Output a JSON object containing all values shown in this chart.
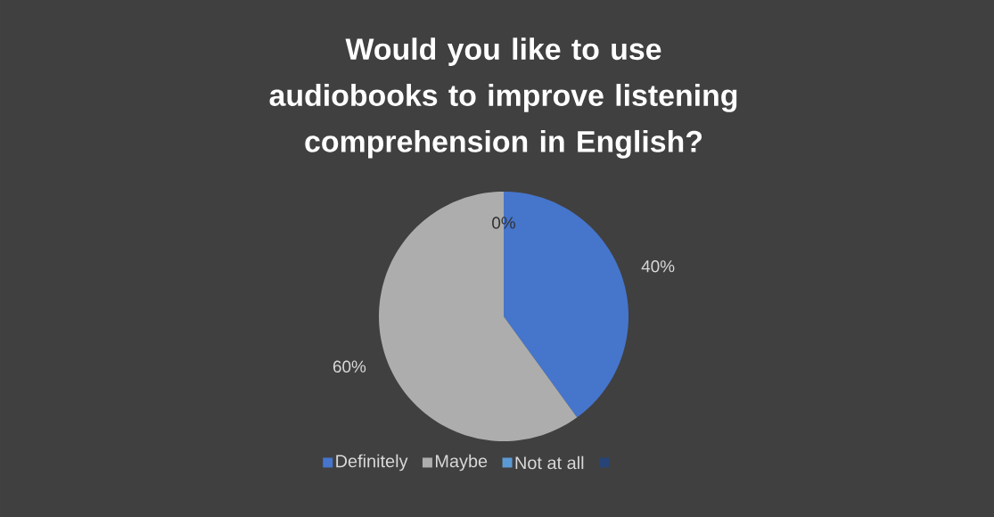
{
  "chart_data": {
    "type": "pie",
    "title": "Would you like to use audiobooks to improve listening comprehension in English?",
    "categories": [
      "Definitely",
      "Maybe",
      "Not at all",
      null
    ],
    "values": [
      40,
      60,
      0,
      0
    ],
    "value_labels": [
      "40%",
      "60%",
      "0%",
      null
    ],
    "colors": [
      "#4675cc",
      "#adadad",
      "#5b9bd5",
      "#264478"
    ],
    "legend": "bottom"
  }
}
